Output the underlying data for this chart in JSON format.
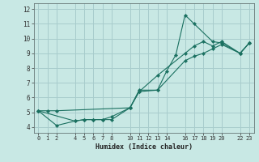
{
  "xlabel": "Humidex (Indice chaleur)",
  "bg_color": "#c8e8e4",
  "grid_color": "#a8cccc",
  "line_color": "#1a7060",
  "xlim": [
    -0.5,
    23.5
  ],
  "ylim": [
    3.6,
    12.4
  ],
  "xticks": [
    0,
    1,
    2,
    4,
    5,
    6,
    7,
    8,
    10,
    11,
    12,
    13,
    14,
    16,
    17,
    18,
    19,
    20,
    22,
    23
  ],
  "xtick_labels": [
    "0",
    "1",
    "2",
    "4",
    "5",
    "6",
    "7",
    "8",
    "10",
    "11",
    "12",
    "13",
    "14",
    "16",
    "17",
    "18",
    "19",
    "20",
    "22",
    "23"
  ],
  "yticks": [
    4,
    5,
    6,
    7,
    8,
    9,
    10,
    11,
    12
  ],
  "ytick_labels": [
    "4",
    "5",
    "6",
    "7",
    "8",
    "9",
    "10",
    "11",
    "12"
  ],
  "lines": [
    {
      "x": [
        0,
        1,
        2,
        10,
        11,
        13,
        14,
        15,
        16,
        17,
        19,
        20,
        22,
        23
      ],
      "y": [
        5.1,
        5.1,
        5.1,
        5.3,
        6.4,
        6.5,
        7.8,
        8.9,
        11.6,
        11.0,
        9.8,
        9.7,
        9.0,
        9.7
      ]
    },
    {
      "x": [
        0,
        4,
        5,
        6,
        7,
        8,
        10,
        11,
        13,
        16,
        17,
        18,
        19,
        20,
        22,
        23
      ],
      "y": [
        5.1,
        4.4,
        4.5,
        4.5,
        4.5,
        4.5,
        5.3,
        6.5,
        6.5,
        8.5,
        8.8,
        9.0,
        9.3,
        9.6,
        9.0,
        9.7
      ]
    },
    {
      "x": [
        0,
        2,
        4,
        5,
        6,
        7,
        8,
        10,
        11,
        13,
        16,
        17,
        18,
        19,
        20,
        22,
        23
      ],
      "y": [
        5.1,
        4.1,
        4.4,
        4.5,
        4.5,
        4.5,
        4.7,
        5.3,
        6.4,
        7.5,
        9.0,
        9.5,
        9.8,
        9.5,
        9.8,
        9.0,
        9.7
      ]
    }
  ]
}
